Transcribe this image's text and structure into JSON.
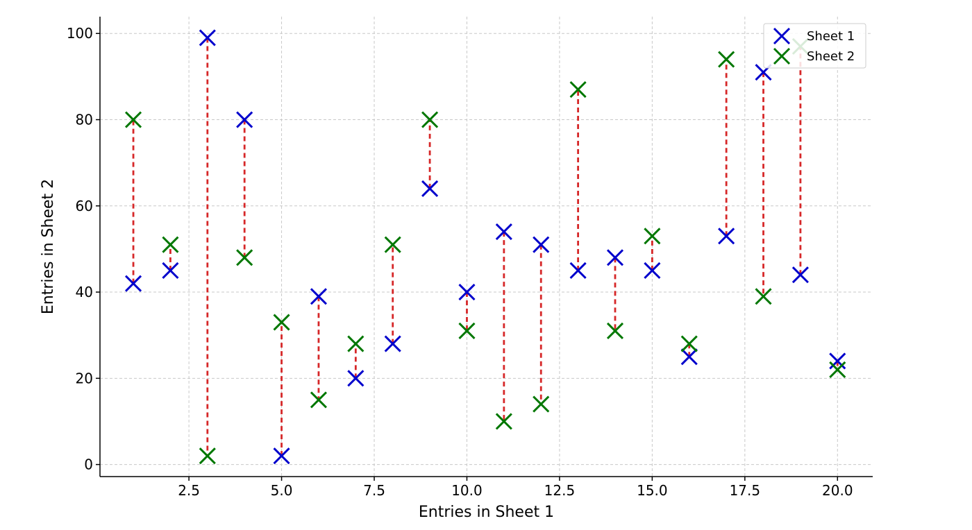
{
  "chart_data": {
    "type": "scatter",
    "title": "",
    "xlabel": "Entries in Sheet 1",
    "ylabel": "Entries in Sheet 2",
    "xlim": [
      0.1,
      20.95
    ],
    "ylim": [
      -2.8,
      103.9
    ],
    "x_ticks": [
      2.5,
      5.0,
      7.5,
      10.0,
      12.5,
      15.0,
      17.5,
      20.0
    ],
    "x_tick_labels": [
      "2.5",
      "5.0",
      "7.5",
      "10.0",
      "12.5",
      "15.0",
      "17.5",
      "20.0"
    ],
    "y_ticks": [
      0,
      20,
      40,
      60,
      80,
      100
    ],
    "y_tick_labels": [
      "0",
      "20",
      "40",
      "60",
      "80",
      "100"
    ],
    "grid": true,
    "legend_position": "top-right",
    "x": [
      1,
      2,
      3,
      4,
      5,
      6,
      7,
      8,
      9,
      10,
      11,
      12,
      13,
      14,
      15,
      16,
      17,
      18,
      19,
      20
    ],
    "series": [
      {
        "name": "Sheet 1",
        "color": "#0000cc",
        "marker": "x",
        "values": [
          42,
          45,
          99,
          80,
          2,
          39,
          20,
          28,
          64,
          40,
          54,
          51,
          45,
          48,
          45,
          25,
          53,
          91,
          44,
          24
        ]
      },
      {
        "name": "Sheet 2",
        "color": "#007700",
        "marker": "x",
        "values": [
          80,
          51,
          2,
          48,
          33,
          15,
          28,
          51,
          80,
          31,
          10,
          14,
          87,
          31,
          53,
          28,
          94,
          39,
          97,
          22
        ]
      }
    ],
    "connector_color": "#d62728"
  }
}
